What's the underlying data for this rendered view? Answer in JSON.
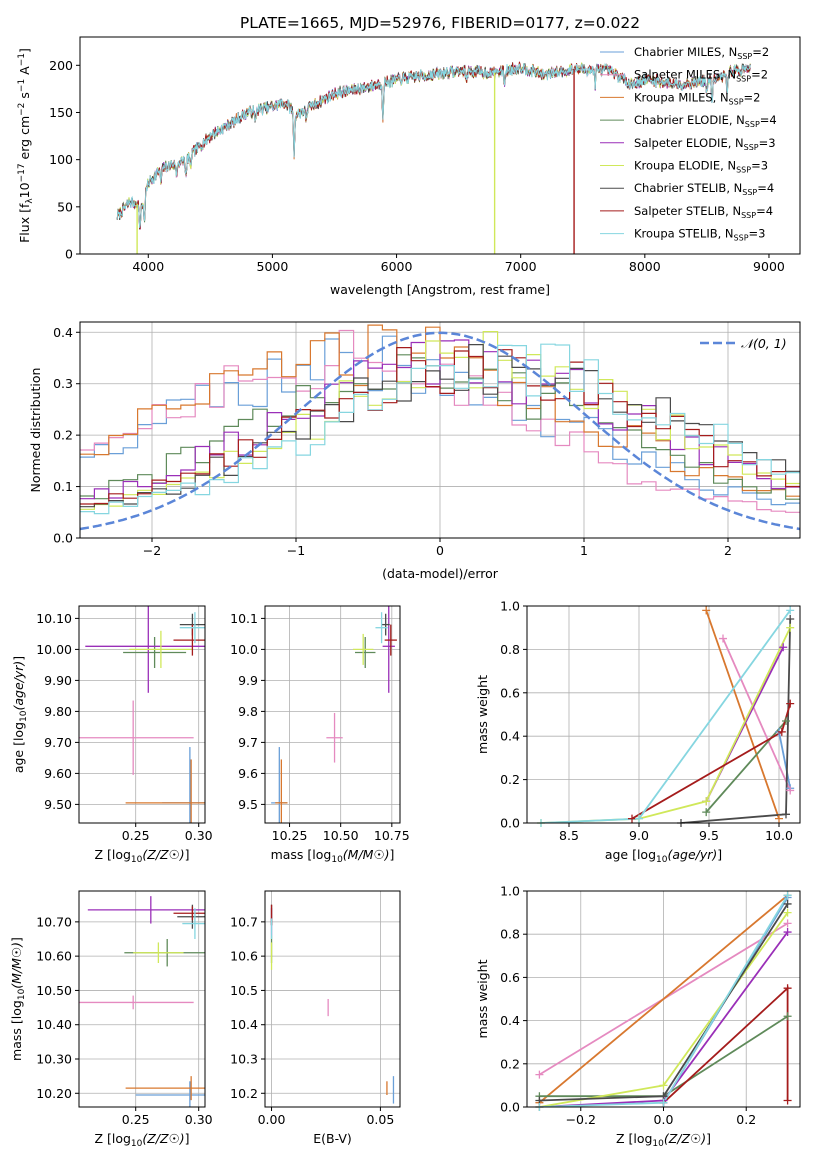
{
  "title": "PLATE=1665, MJD=52976, FIBERID=0177, z=0.022",
  "models": [
    {
      "name": "Chabrier MILES, N",
      "sub": "SSP",
      "tail": "=2",
      "color": "#6a9fd8"
    },
    {
      "name": "Salpeter MILES, N",
      "sub": "SSP",
      "tail": "=2",
      "color": "#e58ac0"
    },
    {
      "name": "Kroupa MILES, N",
      "sub": "SSP",
      "tail": "=2",
      "color": "#d8782f"
    },
    {
      "name": "Chabrier ELODIE, N",
      "sub": "SSP",
      "tail": "=4",
      "color": "#5f8a5a"
    },
    {
      "name": "Salpeter ELODIE, N",
      "sub": "SSP",
      "tail": "=3",
      "color": "#9a2fb8"
    },
    {
      "name": "Kroupa ELODIE, N",
      "sub": "SSP",
      "tail": "=3",
      "color": "#d0e85a"
    },
    {
      "name": "Chabrier STELIB, N",
      "sub": "SSP",
      "tail": "=4",
      "color": "#4a4a4a"
    },
    {
      "name": "Salpeter STELIB, N",
      "sub": "SSP",
      "tail": "=4",
      "color": "#a51c1c"
    },
    {
      "name": "Kroupa STELIB, N",
      "sub": "SSP",
      "tail": "=3",
      "color": "#86d6e0"
    }
  ],
  "chart_data": [
    {
      "id": "spectrum",
      "type": "line",
      "xlabel": "wavelength [Angstrom, rest frame]",
      "ylabel_parts": [
        "Flux [f",
        "λ",
        "10",
        "−17",
        " erg cm",
        "−2",
        " s",
        "−1",
        " A",
        "−1",
        "]"
      ],
      "xlim": [
        3450,
        9250
      ],
      "ylim": [
        0,
        230
      ],
      "xticks": [
        4000,
        5000,
        6000,
        7000,
        8000,
        9000
      ],
      "yticks": [
        0,
        50,
        100,
        150,
        200
      ],
      "continuum_anchors": [
        [
          3750,
          40
        ],
        [
          3850,
          55
        ],
        [
          3950,
          52
        ],
        [
          4000,
          75
        ],
        [
          4100,
          90
        ],
        [
          4300,
          100
        ],
        [
          4500,
          125
        ],
        [
          4800,
          150
        ],
        [
          5100,
          160
        ],
        [
          5200,
          148
        ],
        [
          5500,
          170
        ],
        [
          5800,
          178
        ],
        [
          6000,
          185
        ],
        [
          6500,
          194
        ],
        [
          6800,
          192
        ],
        [
          7000,
          198
        ],
        [
          7200,
          190
        ],
        [
          7400,
          196
        ],
        [
          7700,
          195
        ],
        [
          7900,
          180
        ],
        [
          8000,
          185
        ],
        [
          8300,
          180
        ],
        [
          8600,
          186
        ],
        [
          8700,
          194
        ],
        [
          8850,
          196
        ]
      ],
      "absorption_dips": [
        [
          3933,
          30
        ],
        [
          3968,
          25
        ],
        [
          4102,
          15
        ],
        [
          4227,
          15
        ],
        [
          4304,
          20
        ],
        [
          4340,
          15
        ],
        [
          4861,
          12
        ],
        [
          5175,
          45
        ],
        [
          5270,
          10
        ],
        [
          5890,
          35
        ],
        [
          6563,
          10
        ],
        [
          6870,
          12
        ],
        [
          7600,
          15
        ],
        [
          8498,
          15
        ],
        [
          8542,
          20
        ],
        [
          8662,
          18
        ]
      ],
      "drop_lines": [
        {
          "model": 5,
          "x": 3910
        },
        {
          "model": 5,
          "x": 6790
        },
        {
          "model": 7,
          "x": 7430
        }
      ]
    },
    {
      "id": "residual_hist",
      "type": "histogram",
      "xlabel": "(data-model)/error",
      "ylabel": "Normed distribution",
      "xlim": [
        -2.5,
        2.5
      ],
      "ylim": [
        0,
        0.42
      ],
      "xticks": [
        -2,
        -1,
        0,
        1,
        2
      ],
      "yticks": [
        0.0,
        0.1,
        0.2,
        0.3,
        0.4
      ],
      "bins": 50,
      "gaussian": {
        "label": "𝒩(0, 1)",
        "mu": 0,
        "sigma": 1,
        "color": "#5b86d8"
      },
      "mode_offsets": [
        -0.55,
        -0.75,
        -0.45,
        -0.05,
        0.15,
        0.35,
        0.45,
        0.25,
        0.55
      ],
      "widths": [
        1.45,
        1.35,
        1.5,
        1.3,
        1.35,
        1.25,
        1.35,
        1.3,
        1.3
      ],
      "peaks": [
        0.31,
        0.32,
        0.33,
        0.29,
        0.3,
        0.32,
        0.31,
        0.31,
        0.3
      ]
    },
    {
      "id": "z_age",
      "type": "errorbar",
      "xlabel": "Z [log10(Z/Z☉)]",
      "ylabel": "age  [log10(age/yr)]",
      "xlim": [
        0.205,
        0.305
      ],
      "ylim": [
        9.44,
        10.14
      ],
      "xticks": [
        0.25,
        0.3
      ],
      "yticks": [
        9.5,
        9.6,
        9.7,
        9.8,
        9.9,
        10.0,
        10.1
      ],
      "points": [
        {
          "m": 0,
          "x": 0.293,
          "y": 9.505,
          "xe": 0.022,
          "ye": 0.18
        },
        {
          "m": 1,
          "x": 0.248,
          "y": 9.715,
          "xe": 0.048,
          "ye": 0.12
        },
        {
          "m": 2,
          "x": 0.294,
          "y": 9.505,
          "xe": 0.052,
          "ye": 0.14
        },
        {
          "m": 3,
          "x": 0.265,
          "y": 9.99,
          "xe": 0.025,
          "ye": 0.05
        },
        {
          "m": 4,
          "x": 0.26,
          "y": 10.01,
          "xe": 0.05,
          "ye": 0.15
        },
        {
          "m": 5,
          "x": 0.27,
          "y": 10.0,
          "xe": 0.025,
          "ye": 0.06
        },
        {
          "m": 6,
          "x": 0.295,
          "y": 10.08,
          "xe": 0.01,
          "ye": 0.035
        },
        {
          "m": 7,
          "x": 0.295,
          "y": 10.03,
          "xe": 0.015,
          "ye": 0.05
        },
        {
          "m": 8,
          "x": 0.297,
          "y": 10.07,
          "xe": 0.012,
          "ye": 0.05
        }
      ]
    },
    {
      "id": "mass_age",
      "type": "errorbar",
      "xlabel": "mass [log10(M/M☉)]",
      "ylabel": "",
      "xlim": [
        10.13,
        10.79
      ],
      "ylim": [
        9.44,
        10.14
      ],
      "xticks": [
        10.25,
        10.5,
        10.75
      ],
      "yticks": [
        9.5,
        9.6,
        9.7,
        9.8,
        9.9,
        10.0,
        10.1
      ],
      "points": [
        {
          "m": 0,
          "x": 10.2,
          "y": 9.505,
          "xe": 0.04,
          "ye": 0.18
        },
        {
          "m": 1,
          "x": 10.47,
          "y": 9.715,
          "xe": 0.04,
          "ye": 0.08
        },
        {
          "m": 2,
          "x": 10.21,
          "y": 9.505,
          "xe": 0.03,
          "ye": 0.14
        },
        {
          "m": 3,
          "x": 10.62,
          "y": 9.99,
          "xe": 0.05,
          "ye": 0.05
        },
        {
          "m": 4,
          "x": 10.735,
          "y": 10.01,
          "xe": 0.03,
          "ye": 0.15
        },
        {
          "m": 5,
          "x": 10.61,
          "y": 10.0,
          "xe": 0.05,
          "ye": 0.05
        },
        {
          "m": 6,
          "x": 10.72,
          "y": 10.08,
          "xe": 0.02,
          "ye": 0.035
        },
        {
          "m": 7,
          "x": 10.745,
          "y": 10.03,
          "xe": 0.03,
          "ye": 0.05
        },
        {
          "m": 8,
          "x": 10.7,
          "y": 10.07,
          "xe": 0.03,
          "ye": 0.05
        }
      ]
    },
    {
      "id": "age_weight",
      "type": "line",
      "xlabel": "age  [log10(age/yr)]",
      "ylabel": "mass weight",
      "xlim": [
        8.2,
        10.15
      ],
      "ylim": [
        0,
        1.0
      ],
      "xticks": [
        8.5,
        9.0,
        9.5,
        10.0
      ],
      "yticks": [
        0.0,
        0.2,
        0.4,
        0.6,
        0.8,
        1.0
      ],
      "series": [
        {
          "m": 0,
          "points": [
            [
              10.0,
              0.42
            ],
            [
              10.08,
              0.16
            ]
          ]
        },
        {
          "m": 1,
          "points": [
            [
              9.6,
              0.85
            ],
            [
              10.08,
              0.15
            ]
          ]
        },
        {
          "m": 2,
          "points": [
            [
              9.48,
              0.98
            ],
            [
              10.0,
              0.02
            ]
          ]
        },
        {
          "m": 3,
          "points": [
            [
              9.48,
              0.05
            ],
            [
              10.05,
              0.47
            ]
          ]
        },
        {
          "m": 4,
          "points": [
            [
              9.48,
              0.1
            ],
            [
              10.03,
              0.81
            ]
          ]
        },
        {
          "m": 5,
          "points": [
            [
              8.3,
              0.0
            ],
            [
              9.0,
              0.02
            ],
            [
              9.48,
              0.1
            ],
            [
              10.08,
              0.9
            ]
          ]
        },
        {
          "m": 6,
          "points": [
            [
              9.3,
              0.0
            ],
            [
              10.05,
              0.04
            ],
            [
              10.08,
              0.94
            ]
          ]
        },
        {
          "m": 7,
          "points": [
            [
              8.95,
              0.02
            ],
            [
              10.02,
              0.42
            ],
            [
              10.08,
              0.55
            ]
          ]
        },
        {
          "m": 8,
          "points": [
            [
              8.3,
              0.0
            ],
            [
              9.0,
              0.02
            ],
            [
              10.08,
              0.98
            ]
          ]
        }
      ]
    },
    {
      "id": "z_mass",
      "type": "errorbar",
      "xlabel": "Z [log10(Z/Z☉)]",
      "ylabel": "mass [log10(M/M☉)]",
      "xlim": [
        0.205,
        0.305
      ],
      "ylim": [
        10.16,
        10.79
      ],
      "xticks": [
        0.25,
        0.3
      ],
      "yticks": [
        10.2,
        10.3,
        10.4,
        10.5,
        10.6,
        10.7
      ],
      "points": [
        {
          "m": 0,
          "x": 0.293,
          "y": 10.195,
          "xe": 0.043,
          "ye": 0.04
        },
        {
          "m": 1,
          "x": 0.248,
          "y": 10.465,
          "xe": 0.048,
          "ye": 0.02
        },
        {
          "m": 2,
          "x": 0.294,
          "y": 10.215,
          "xe": 0.052,
          "ye": 0.035
        },
        {
          "m": 3,
          "x": 0.275,
          "y": 10.61,
          "xe": 0.034,
          "ye": 0.04
        },
        {
          "m": 4,
          "x": 0.262,
          "y": 10.735,
          "xe": 0.05,
          "ye": 0.04
        },
        {
          "m": 5,
          "x": 0.268,
          "y": 10.61,
          "xe": 0.02,
          "ye": 0.03
        },
        {
          "m": 6,
          "x": 0.295,
          "y": 10.715,
          "xe": 0.012,
          "ye": 0.035
        },
        {
          "m": 7,
          "x": 0.295,
          "y": 10.725,
          "xe": 0.015,
          "ye": 0.02
        },
        {
          "m": 8,
          "x": 0.297,
          "y": 10.695,
          "xe": 0.01,
          "ye": 0.045
        }
      ]
    },
    {
      "id": "ebv_mass",
      "type": "errorbar",
      "xlabel": "E(B-V)",
      "ylabel": "",
      "xlim": [
        -0.003,
        0.059
      ],
      "ylim": [
        10.16,
        10.79
      ],
      "xticks": [
        0.0,
        0.05
      ],
      "yticks": [
        10.2,
        10.3,
        10.4,
        10.5,
        10.6,
        10.7
      ],
      "points": [
        {
          "m": 0,
          "x": 0.056,
          "y": 10.21,
          "xe": 0.0,
          "ye": 0.04
        },
        {
          "m": 1,
          "x": 0.026,
          "y": 10.45,
          "xe": 0.0,
          "ye": 0.025
        },
        {
          "m": 2,
          "x": 0.053,
          "y": 10.215,
          "xe": 0.0,
          "ye": 0.02
        },
        {
          "m": 3,
          "x": 0.0,
          "y": 10.62,
          "xe": 0.0,
          "ye": 0.04
        },
        {
          "m": 4,
          "x": 0.0,
          "y": 10.7,
          "xe": 0.0,
          "ye": 0.04
        },
        {
          "m": 5,
          "x": 0.0,
          "y": 10.6,
          "xe": 0.0,
          "ye": 0.04
        },
        {
          "m": 6,
          "x": 0.0,
          "y": 10.72,
          "xe": 0.0,
          "ye": 0.03
        },
        {
          "m": 7,
          "x": 0.0,
          "y": 10.72,
          "xe": 0.0,
          "ye": 0.03
        },
        {
          "m": 8,
          "x": 0.0,
          "y": 10.68,
          "xe": 0.0,
          "ye": 0.03
        }
      ]
    },
    {
      "id": "z_weight",
      "type": "line",
      "xlabel": "Z [log10(Z/Z☉)]",
      "ylabel": "mass weight",
      "xlim": [
        -0.33,
        0.33
      ],
      "ylim": [
        0,
        1.0
      ],
      "xticks": [
        -0.2,
        0.0,
        0.2
      ],
      "yticks": [
        0.0,
        0.2,
        0.4,
        0.6,
        0.8,
        1.0
      ],
      "series": [
        {
          "m": 0,
          "points": [
            [
              0.0,
              0.02
            ],
            [
              0.3,
              0.97
            ]
          ]
        },
        {
          "m": 1,
          "points": [
            [
              -0.3,
              0.15
            ],
            [
              0.3,
              0.85
            ]
          ]
        },
        {
          "m": 2,
          "points": [
            [
              -0.3,
              0.02
            ],
            [
              0.3,
              0.98
            ]
          ]
        },
        {
          "m": 3,
          "points": [
            [
              -0.3,
              0.05
            ],
            [
              0.0,
              0.05
            ],
            [
              0.3,
              0.42
            ]
          ]
        },
        {
          "m": 4,
          "points": [
            [
              -0.3,
              0.0
            ],
            [
              0.0,
              0.03
            ],
            [
              0.3,
              0.81
            ]
          ]
        },
        {
          "m": 5,
          "points": [
            [
              -0.3,
              0.0
            ],
            [
              0.0,
              0.1
            ],
            [
              0.3,
              0.9
            ]
          ]
        },
        {
          "m": 6,
          "points": [
            [
              -0.3,
              0.03
            ],
            [
              0.0,
              0.05
            ],
            [
              0.3,
              0.94
            ]
          ]
        },
        {
          "m": 7,
          "points": [
            [
              0.0,
              0.02
            ],
            [
              0.3,
              0.55
            ],
            [
              0.3,
              0.03
            ]
          ]
        },
        {
          "m": 8,
          "points": [
            [
              -0.3,
              0.0
            ],
            [
              0.0,
              0.02
            ],
            [
              0.3,
              0.98
            ]
          ]
        }
      ]
    }
  ]
}
